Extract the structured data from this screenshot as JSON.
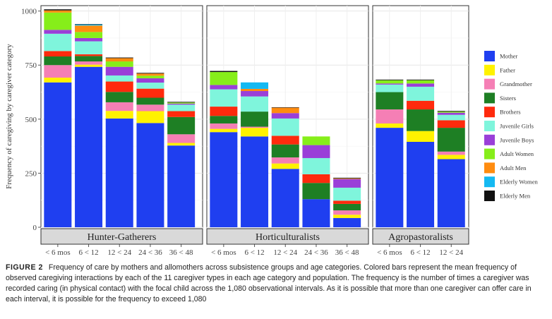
{
  "chart_data": {
    "type": "bar",
    "stacked": true,
    "ylabel": "Frequency of caregiving by caregiver category",
    "ylim": [
      0,
      1025
    ],
    "yticks": [
      0,
      250,
      500,
      750,
      1000
    ],
    "grid": true,
    "legend_position": "right",
    "series": [
      {
        "name": "Mother",
        "color": "#1f3ff0"
      },
      {
        "name": "Father",
        "color": "#fff200"
      },
      {
        "name": "Grandmother",
        "color": "#f57fb5"
      },
      {
        "name": "Sisters",
        "color": "#1e7f24"
      },
      {
        "name": "Brothers",
        "color": "#ff2a0d"
      },
      {
        "name": "Juvenile Girls",
        "color": "#7ff5dc"
      },
      {
        "name": "Juvenile Boys",
        "color": "#9a3fd8"
      },
      {
        "name": "Adult Women",
        "color": "#86ee1a"
      },
      {
        "name": "Adult Men",
        "color": "#ff8c10"
      },
      {
        "name": "Elderly Women",
        "color": "#14b9f2"
      },
      {
        "name": "Elderly Men",
        "color": "#111111"
      }
    ],
    "panels": [
      {
        "name": "Hunter-Gatherers",
        "categories": [
          "< 6 mos",
          "6 < 12",
          "12 < 24",
          "24 < 36",
          "36 < 48"
        ],
        "values": [
          [
            670,
            742,
            503,
            482,
            378
          ],
          [
            22,
            10,
            35,
            55,
            12
          ],
          [
            58,
            15,
            40,
            30,
            40
          ],
          [
            40,
            25,
            48,
            32,
            80
          ],
          [
            25,
            8,
            48,
            42,
            27
          ],
          [
            80,
            60,
            28,
            28,
            30
          ],
          [
            18,
            15,
            40,
            20,
            5
          ],
          [
            80,
            28,
            25,
            12,
            5
          ],
          [
            10,
            30,
            15,
            10,
            0
          ],
          [
            0,
            5,
            0,
            0,
            0
          ],
          [
            5,
            2,
            3,
            3,
            3
          ]
        ]
      },
      {
        "name": "Horticulturalists",
        "categories": [
          "< 6 mos",
          "6 < 12",
          "12 < 24",
          "24 < 36",
          "36 < 48"
        ],
        "values": [
          [
            440,
            420,
            270,
            130,
            43
          ],
          [
            15,
            40,
            25,
            0,
            15
          ],
          [
            25,
            5,
            28,
            0,
            20
          ],
          [
            35,
            70,
            60,
            75,
            30
          ],
          [
            43,
            0,
            40,
            40,
            15
          ],
          [
            80,
            70,
            80,
            75,
            60
          ],
          [
            20,
            25,
            25,
            60,
            40
          ],
          [
            60,
            0,
            0,
            40,
            0
          ],
          [
            0,
            10,
            25,
            0,
            3
          ],
          [
            0,
            30,
            0,
            0,
            0
          ],
          [
            5,
            0,
            2,
            0,
            3
          ]
        ]
      },
      {
        "name": "Agropastoralists",
        "categories": [
          "< 6 mos",
          "6 < 12",
          "12 < 24"
        ],
        "values": [
          [
            460,
            395,
            315
          ],
          [
            20,
            50,
            20
          ],
          [
            65,
            0,
            15
          ],
          [
            80,
            100,
            110
          ],
          [
            0,
            40,
            35
          ],
          [
            35,
            65,
            25
          ],
          [
            5,
            15,
            10
          ],
          [
            15,
            15,
            5
          ],
          [
            0,
            0,
            0
          ],
          [
            0,
            0,
            0
          ],
          [
            3,
            3,
            3
          ]
        ]
      }
    ]
  },
  "caption": {
    "figure_label": "FIGURE 2",
    "text": "Frequency of care by mothers and allomothers across subsistence groups and age categories. Colored bars represent the mean frequency of observed caregiving interactions by each of the 11 caregiver types in each age category and population. The frequency is the number of times a caregiver was recorded caring (in physical contact) with the focal child across the 1,080 observational intervals. As it is possible that more than one caregiver can offer care in each interval, it is possible for the frequency to exceed 1,080"
  }
}
